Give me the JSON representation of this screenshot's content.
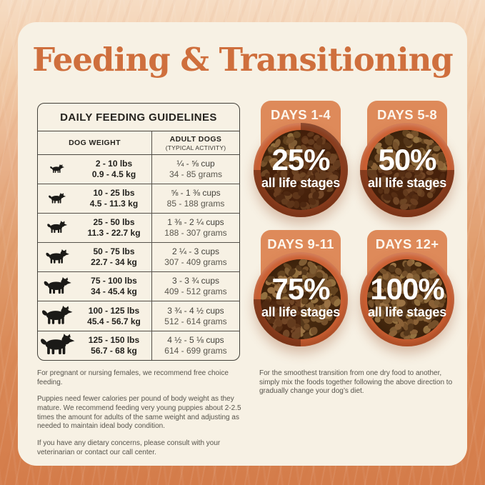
{
  "title": "Feeding & Transitioning",
  "colors": {
    "accent_orange": "#cf6f3d",
    "tab_orange": "#de8a5a",
    "bowl_rim": "#cc6134",
    "card_cream": "#f7f1e4",
    "background_orange": "#d47c4a",
    "shade_overlay": "rgba(72,26,8,0.5)"
  },
  "feeding_table": {
    "title": "DAILY FEEDING GUIDELINES",
    "columns": {
      "weight": "DOG WEIGHT",
      "amount": "ADULT DOGS",
      "amount_sub": "(TYPICAL ACTIVITY)"
    },
    "rows": [
      {
        "lbs": "2 - 10 lbs",
        "kg": "0.9 - 4.5 kg",
        "cups": "¼ - ⅝ cup",
        "grams": "34 - 85 grams"
      },
      {
        "lbs": "10 - 25 lbs",
        "kg": "4.5 - 11.3 kg",
        "cups": "⅝ - 1 ⅜ cups",
        "grams": "85 - 188 grams"
      },
      {
        "lbs": "25 - 50 lbs",
        "kg": "11.3 - 22.7 kg",
        "cups": "1 ⅜ - 2 ¼ cups",
        "grams": "188 - 307 grams"
      },
      {
        "lbs": "50 - 75 lbs",
        "kg": "22.7 - 34 kg",
        "cups": "2 ¼ - 3 cups",
        "grams": "307 - 409 grams"
      },
      {
        "lbs": "75 - 100 lbs",
        "kg": "34 - 45.4 kg",
        "cups": "3 - 3 ¾ cups",
        "grams": "409 - 512 grams"
      },
      {
        "lbs": "100 - 125 lbs",
        "kg": "45.4 - 56.7 kg",
        "cups": "3 ¾ - 4 ½ cups",
        "grams": "512 - 614 grams"
      },
      {
        "lbs": "125 - 150 lbs",
        "kg": "56.7 - 68 kg",
        "cups": "4 ½ - 5 ⅛ cups",
        "grams": "614 - 699 grams"
      }
    ]
  },
  "transition": {
    "stages": [
      {
        "days": "DAYS 1-4",
        "percent": 25,
        "percent_label": "25%",
        "caption": "all life stages"
      },
      {
        "days": "DAYS 5-8",
        "percent": 50,
        "percent_label": "50%",
        "caption": "all life stages"
      },
      {
        "days": "DAYS 9-11",
        "percent": 75,
        "percent_label": "75%",
        "caption": "all life stages"
      },
      {
        "days": "DAYS 12+",
        "percent": 100,
        "percent_label": "100%",
        "caption": "all life stages"
      }
    ]
  },
  "footnotes": {
    "left": [
      "For pregnant or nursing females, we recommend free choice feeding.",
      "Puppies need fewer calories per pound of body weight as they mature. We recommend feeding very young puppies about 2-2.5 times the amount for adults of the same weight and adjusting as needed to maintain ideal body condition.",
      "If you have any dietary concerns, please consult with your veterinarian or contact our call center."
    ],
    "right": [
      "For the smoothest transition from one dry food to another, simply mix the foods together following the above direction to gradually change your dog’s diet."
    ]
  }
}
